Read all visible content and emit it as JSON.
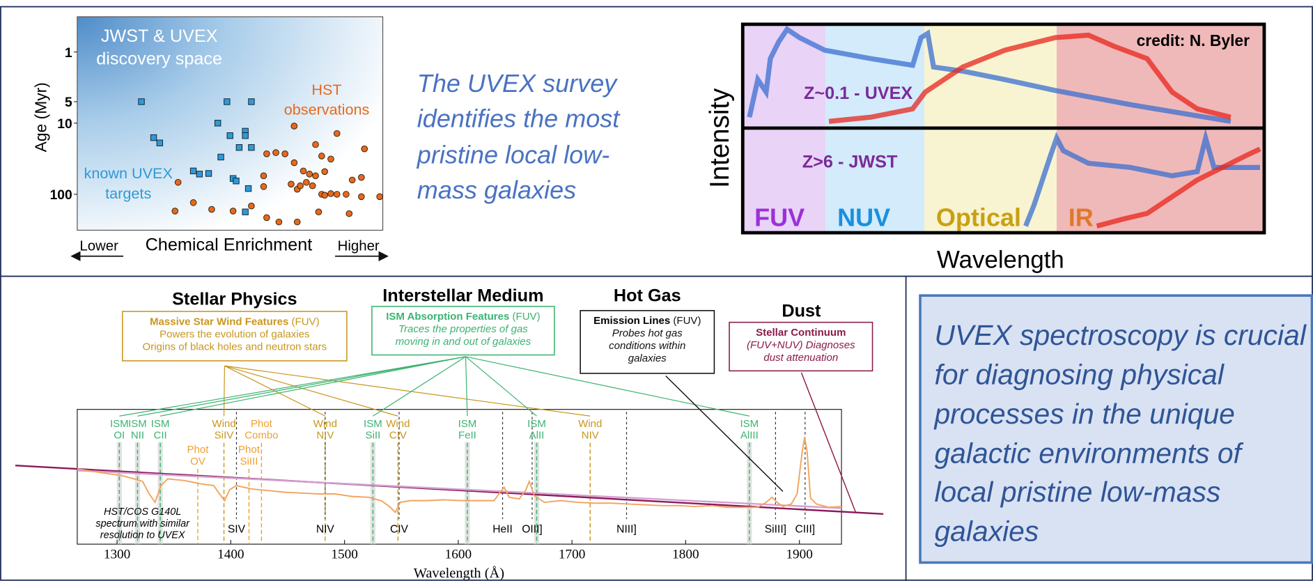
{
  "scatter_plot": {
    "type": "scatter",
    "annotations": {
      "discovery": [
        "JWST & UVEX",
        "discovery space"
      ],
      "hst": [
        "HST",
        "observations"
      ],
      "known": [
        "known UVEX",
        "targets"
      ]
    },
    "y_label": "Age (Myr)",
    "x_label": "Chemical Enrichment",
    "x_low_label": "Lower",
    "x_high_label": "Higher",
    "xlim": [
      0,
      1
    ],
    "ylim": [
      0.32,
      320
    ],
    "log_y": true,
    "y_inverted": true,
    "yticks": [
      1,
      5,
      10,
      100
    ],
    "series": [
      {
        "color": "#2e9ad6",
        "marker": "square",
        "x": [
          0.21,
          0.25,
          0.27,
          0.49,
          0.57,
          0.46,
          0.5,
          0.55,
          0.55,
          0.53,
          0.57,
          0.47,
          0.38,
          0.4,
          0.43,
          0.51,
          0.52,
          0.56,
          0.55
        ],
        "values": [
          5,
          16,
          19,
          5,
          5,
          10,
          15,
          13,
          15,
          22,
          22,
          30,
          47,
          52,
          51,
          60,
          65,
          83,
          177
        ]
      },
      {
        "color": "#e8691c",
        "marker": "circle",
        "x": [
          0.71,
          0.85,
          0.62,
          0.65,
          0.68,
          0.78,
          0.61,
          0.61,
          0.71,
          0.8,
          0.83,
          0.94,
          0.7,
          0.72,
          0.74,
          0.76,
          0.78,
          0.81,
          0.73,
          0.75,
          0.77,
          0.8,
          0.81,
          0.83,
          0.85,
          0.88,
          0.9,
          0.93,
          0.93,
          0.99,
          0.89,
          0.33,
          0.32,
          0.38,
          0.44,
          0.51,
          0.57,
          0.62,
          0.66,
          0.72,
          0.79
        ],
        "values": [
          11,
          14,
          27,
          26,
          27,
          20,
          55,
          78,
          36,
          29,
          32,
          23,
          72,
          85,
          47,
          52,
          55,
          48,
          76,
          68,
          76,
          100,
          103,
          98,
          100,
          100,
          63,
          58,
          108,
          108,
          187,
          68,
          172,
          131,
          163,
          172,
          146,
          213,
          245,
          245,
          177
        ]
      }
    ]
  },
  "top_caption": [
    "The UVEX survey",
    "identifies the most",
    "pristine local low-",
    "mass galaxies"
  ],
  "spectra_figure": {
    "credit": "credit: N. Byler",
    "upper_label": "Z~0.1 - UVEX",
    "lower_label": "Z>6 - JWST",
    "y_label": "Intensity",
    "x_label": "Wavelength",
    "bands": [
      {
        "label": "FUV",
        "color": "#e9d3f7",
        "label_color": "#9b30d9"
      },
      {
        "label": "NUV",
        "color": "#d3ebfa",
        "label_color": "#1a8fe0"
      },
      {
        "label": "Optical",
        "color": "#f8f4d2",
        "label_color": "#c9a012"
      },
      {
        "label": "IR",
        "color": "#f0b9b9",
        "label_color": "#e0782a"
      }
    ]
  },
  "spectrum_panel": {
    "groups": [
      {
        "title": "Stellar Physics",
        "box_heading": "Massive Star Wind Features",
        "box_note": "(FUV)",
        "box_lines": [
          "Powers the evolution of galaxies",
          "Origins of black holes and neutron stars"
        ],
        "color": "#c8961e",
        "italic": false
      },
      {
        "title": "Interstellar Medium",
        "box_heading": "ISM Absorption Features",
        "box_note": "(FUV)",
        "box_lines": [
          "Traces the properties of gas",
          "moving in and out of galaxies"
        ],
        "color": "#3cb371",
        "italic": true
      },
      {
        "title": "Hot Gas",
        "box_heading": "Emission Lines",
        "box_note": "(FUV)",
        "box_lines": [
          "Probes hot gas",
          "conditions within",
          "galaxies"
        ],
        "color": "#111111",
        "italic": true
      },
      {
        "title": "Dust",
        "box_heading": "Stellar Continuum",
        "box_lines": [
          "(FUV+NUV) Diagnoses",
          "dust attenuation"
        ],
        "color": "#8b1a4a",
        "italic": true
      }
    ],
    "features": [
      {
        "label": [
          "ISM",
          "OI"
        ],
        "wavelength": 1302,
        "color": "#3cb371"
      },
      {
        "label": [
          "ISM",
          "NII"
        ],
        "wavelength": 1318,
        "color": "#3cb371"
      },
      {
        "label": [
          "ISM",
          "CII"
        ],
        "wavelength": 1338,
        "color": "#3cb371"
      },
      {
        "label": [
          "Wind",
          "SiIV"
        ],
        "wavelength": 1394,
        "color": "#c8961e"
      },
      {
        "label": [
          "Phot",
          "Combo"
        ],
        "wavelength": 1427,
        "color": "#f0a030"
      },
      {
        "label": [
          "Wind",
          "NIV"
        ],
        "wavelength": 1483,
        "color": "#c8961e"
      },
      {
        "label": [
          "ISM",
          "SiII"
        ],
        "wavelength": 1525,
        "color": "#3cb371"
      },
      {
        "label": [
          "Wind",
          "CIV"
        ],
        "wavelength": 1547,
        "color": "#c8961e"
      },
      {
        "label": [
          "ISM",
          "FeII"
        ],
        "wavelength": 1608,
        "color": "#3cb371"
      },
      {
        "label": [
          "ISM",
          "AlII"
        ],
        "wavelength": 1669,
        "color": "#3cb371"
      },
      {
        "label": [
          "Wind",
          "NIV"
        ],
        "wavelength": 1716,
        "color": "#c8961e"
      },
      {
        "label": [
          "ISM",
          "AlIII"
        ],
        "wavelength": 1856,
        "color": "#3cb371"
      }
    ],
    "lower_features": [
      {
        "label": [
          "Phot",
          "OV"
        ],
        "wavelength": 1371,
        "color": "#f0a030"
      },
      {
        "label": [
          "Phot",
          "SiIII"
        ],
        "wavelength": 1416,
        "color": "#f0a030"
      }
    ],
    "lines": [
      {
        "label": "SIV",
        "wavelength": 1405
      },
      {
        "label": "NIV",
        "wavelength": 1483
      },
      {
        "label": "CIV",
        "wavelength": 1548
      },
      {
        "label": "HeII",
        "wavelength": 1639
      },
      {
        "label": "OIII]",
        "wavelength": 1665
      },
      {
        "label": "NIII]",
        "wavelength": 1748
      },
      {
        "label": "SiIII]",
        "wavelength": 1879
      },
      {
        "label": "CIII]",
        "wavelength": 1905
      }
    ],
    "note": [
      "HST/COS G140L",
      "spectrum with similar",
      "resolution to UVEX"
    ],
    "x_label": "Wavelength (Å)",
    "xlim": [
      1265,
      1937
    ],
    "xticks": [
      1300,
      1400,
      1500,
      1600,
      1700,
      1800,
      1900
    ]
  },
  "bottom_caption": [
    "UVEX spectroscopy is crucial",
    "for diagnosing physical",
    "processes in the unique",
    "galactic environments of",
    "local pristine low-mass",
    "galaxies"
  ]
}
